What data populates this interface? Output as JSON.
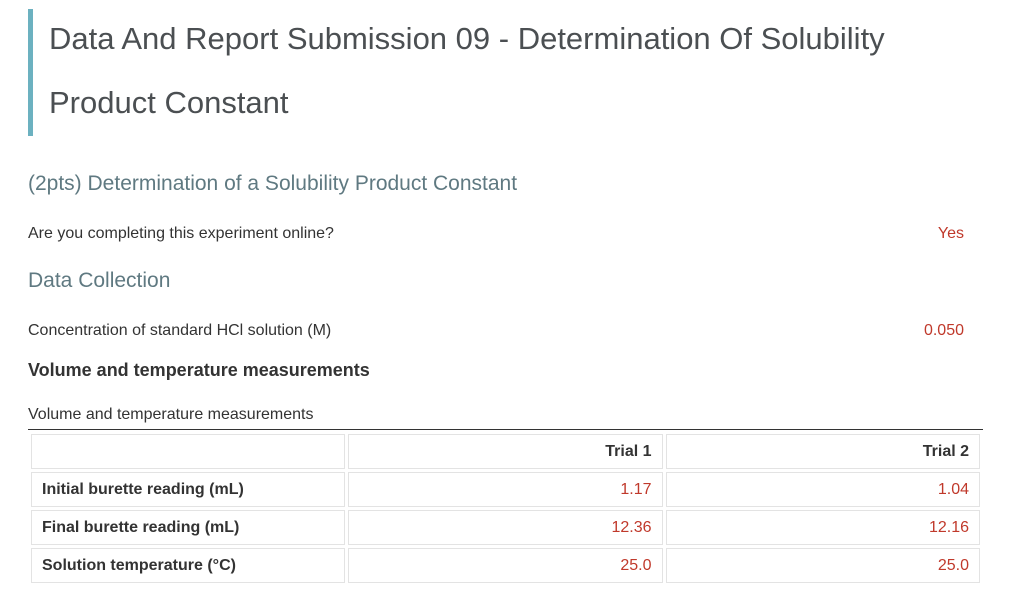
{
  "title": {
    "line1": "Data And Report Submission 09 - Determination Of Solubility",
    "line2": "Product Constant"
  },
  "section1": {
    "heading": "(2pts) Determination of a Solubility Product Constant",
    "question": "Are you completing this experiment online?",
    "answer": "Yes"
  },
  "section2": {
    "heading": "Data Collection",
    "concentration_label": "Concentration of standard HCl solution (M)",
    "concentration_value": "0.050"
  },
  "measurements": {
    "heading": "Volume and temperature measurements",
    "caption": "Volume and temperature measurements",
    "columns": [
      "",
      "Trial 1",
      "Trial 2"
    ],
    "rows": [
      {
        "label": "Initial burette reading (mL)",
        "trial1": "1.17",
        "trial2": "1.04"
      },
      {
        "label": "Final burette reading (mL)",
        "trial1": "12.36",
        "trial2": "12.16"
      },
      {
        "label": "Solution temperature (°C)",
        "trial1": "25.0",
        "trial2": "25.0"
      }
    ]
  },
  "colors": {
    "accent_bar": "#6cb1c0",
    "value_text": "#c0392b",
    "section_heading": "#5f7981"
  }
}
